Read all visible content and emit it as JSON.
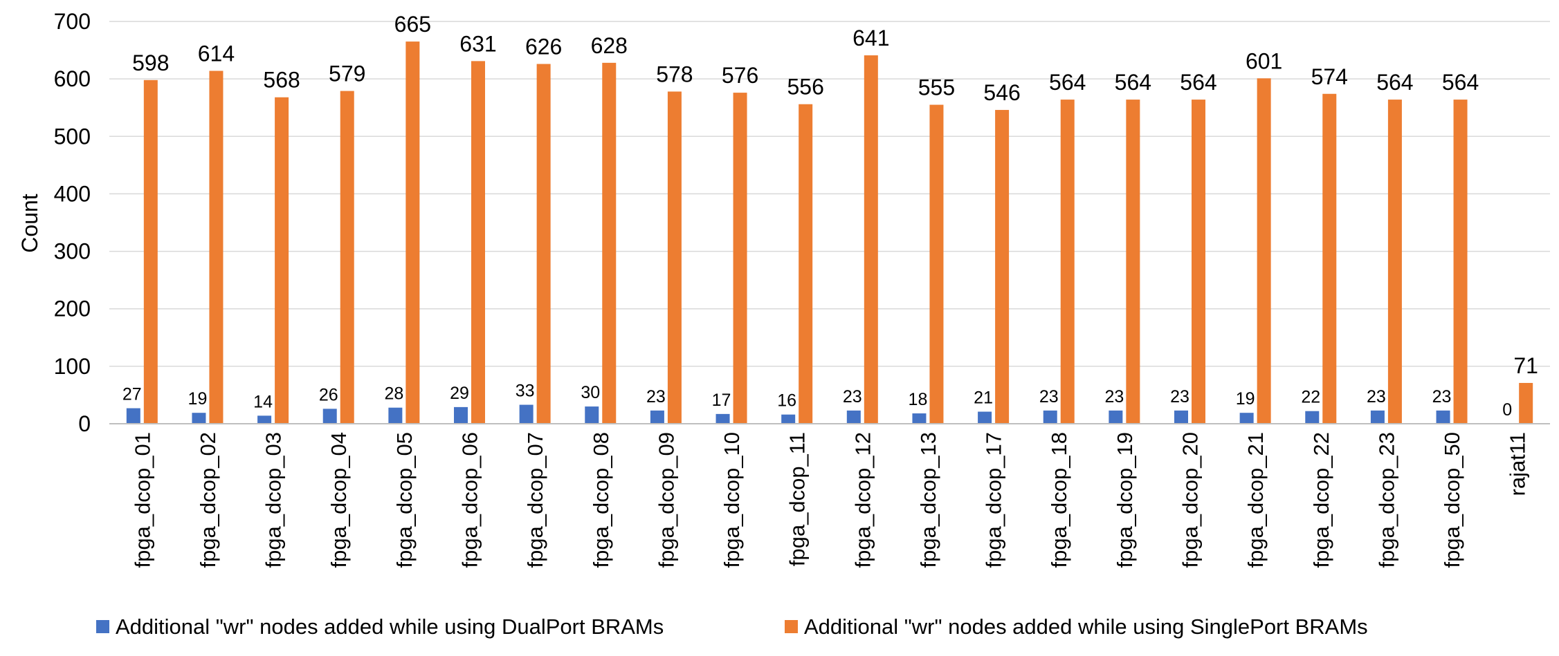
{
  "chart_data": {
    "type": "bar",
    "ylabel": "Count",
    "ylim": [
      0,
      700
    ],
    "yticks": [
      0,
      100,
      200,
      300,
      400,
      500,
      600,
      700
    ],
    "grid": true,
    "legend_position": "bottom",
    "categories": [
      "fpga_dcop_01",
      "fpga_dcop_02",
      "fpga_dcop_03",
      "fpga_dcop_04",
      "fpga_dcop_05",
      "fpga_dcop_06",
      "fpga_dcop_07",
      "fpga_dcop_08",
      "fpga_dcop_09",
      "fpga_dcop_10",
      "fpga_dcop_11",
      "fpga_dcop_12",
      "fpga_dcop_13",
      "fpga_dcop_17",
      "fpga_dcop_18",
      "fpga_dcop_19",
      "fpga_dcop_20",
      "fpga_dcop_21",
      "fpga_dcop_22",
      "fpga_dcop_23",
      "fpga_dcop_50",
      "rajat11"
    ],
    "series": [
      {
        "name": "Additional \"wr\" nodes added while using DualPort BRAMs",
        "color": "#4472C4",
        "values": [
          27,
          19,
          14,
          26,
          28,
          29,
          33,
          30,
          23,
          17,
          16,
          23,
          18,
          21,
          23,
          23,
          23,
          19,
          22,
          23,
          23,
          0
        ]
      },
      {
        "name": "Additional \"wr\" nodes added while using SinglePort BRAMs",
        "color": "#ED7D31",
        "values": [
          598,
          614,
          568,
          579,
          665,
          631,
          626,
          628,
          578,
          576,
          556,
          641,
          555,
          546,
          564,
          564,
          564,
          601,
          574,
          564,
          564,
          71
        ]
      }
    ]
  }
}
